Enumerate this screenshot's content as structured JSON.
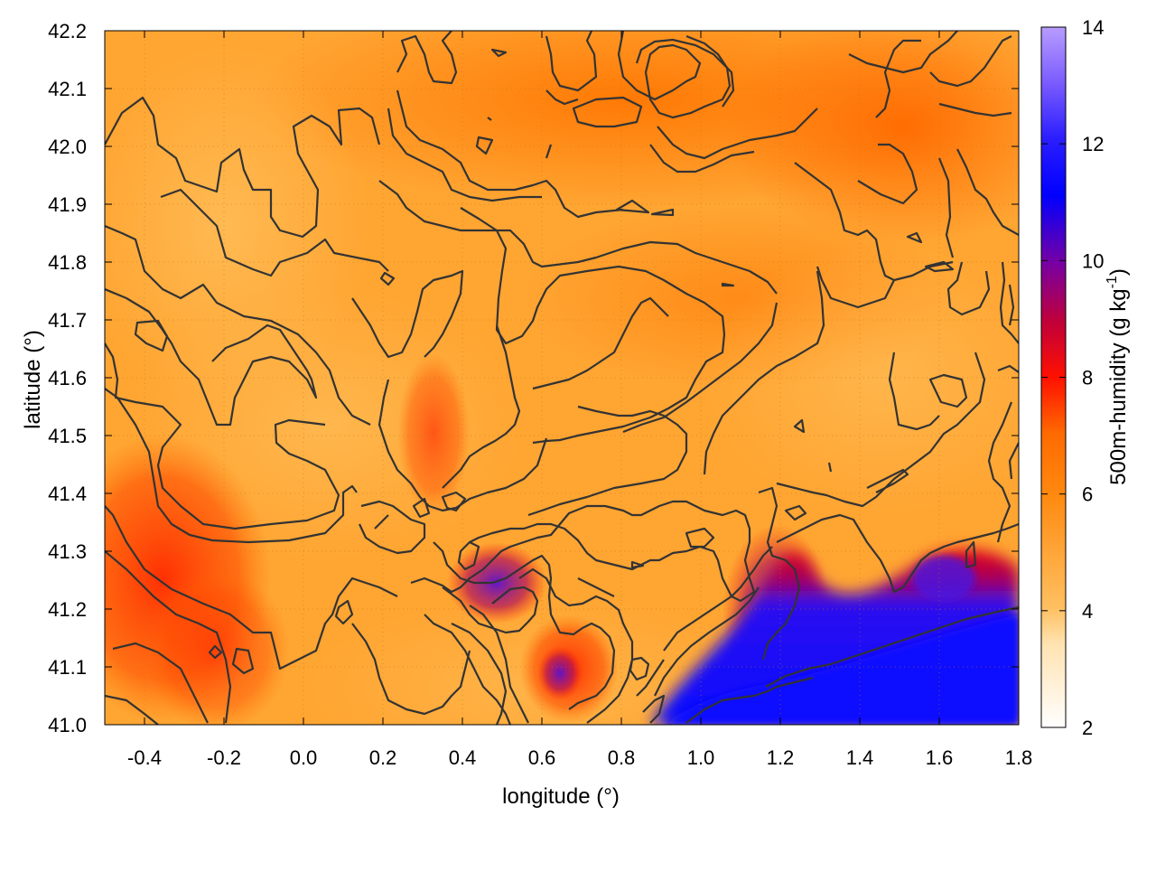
{
  "chart_data": {
    "type": "heatmap",
    "title": "",
    "xlabel": "longitude (°)",
    "ylabel": "latitude (°)",
    "xlim": [
      -0.5,
      1.8
    ],
    "ylim": [
      41.0,
      42.2
    ],
    "x_ticks": [
      "-0.4",
      "-0.2",
      "0.0",
      "0.2",
      "0.4",
      "0.6",
      "0.8",
      "1.0",
      "1.2",
      "1.4",
      "1.6",
      "1.8"
    ],
    "y_ticks": [
      "41.0",
      "41.1",
      "41.2",
      "41.3",
      "41.4",
      "41.5",
      "41.6",
      "41.7",
      "41.8",
      "41.9",
      "42.0",
      "42.1",
      "42.2"
    ],
    "grid": true,
    "grid_style": "dotted",
    "colorbar": {
      "label_main": "500m-humidity (g kg",
      "label_sup": "-1",
      "label_end": ")",
      "range": [
        2,
        14
      ],
      "ticks": [
        "2",
        "4",
        "6",
        "8",
        "10",
        "12",
        "14"
      ],
      "colors": [
        "#ffffff",
        "#ffc061",
        "#ff8a10",
        "#ff7300",
        "#ff0000",
        "#8800aa",
        "#0000ff",
        "#b08aff"
      ]
    },
    "field_description_values": {
      "background_humidity_typical": 5,
      "northern_band_humidity": 6.3,
      "southwest_band_humidity": 7.2,
      "southeast_sea_humidity": 11.5
    },
    "contours": {
      "color": "#333333",
      "present": true
    }
  }
}
